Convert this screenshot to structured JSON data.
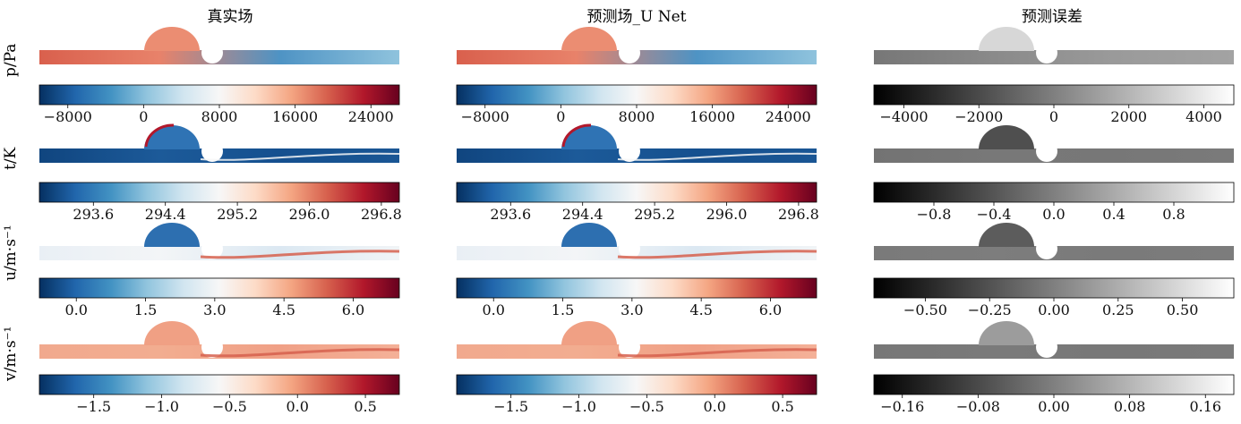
{
  "column_titles": [
    "真实场",
    "预测场_U Net",
    "预测误差"
  ],
  "row_labels": [
    "p/Pa",
    "t/K",
    "u/m·s⁻¹",
    "v/m·s⁻¹"
  ],
  "colors": {
    "diverging": [
      "#053061",
      "#2166ac",
      "#4393c3",
      "#92c5de",
      "#d1e5f0",
      "#f7f7f7",
      "#fddbc7",
      "#f4a582",
      "#d6604d",
      "#b2182b",
      "#67001f"
    ],
    "gray": [
      "#000000",
      "#ffffff"
    ]
  },
  "chart_data": [
    {
      "type": "heatmap",
      "panel": "p-true",
      "colormap": "RdBu_r",
      "vmin": -11000,
      "vmax": 27000,
      "ticks": [
        "−8000",
        "0",
        "8000",
        "16000",
        "24000"
      ],
      "tick_values": [
        -8000,
        0,
        8000,
        16000,
        24000
      ]
    },
    {
      "type": "heatmap",
      "panel": "p-pred",
      "colormap": "RdBu_r",
      "vmin": -11000,
      "vmax": 27000,
      "ticks": [
        "−8000",
        "0",
        "8000",
        "16000",
        "24000"
      ],
      "tick_values": [
        -8000,
        0,
        8000,
        16000,
        24000
      ]
    },
    {
      "type": "heatmap",
      "panel": "p-err",
      "colormap": "gray",
      "vmin": -4800,
      "vmax": 4800,
      "ticks": [
        "−4000",
        "−2000",
        "0",
        "2000",
        "4000"
      ],
      "tick_values": [
        -4000,
        -2000,
        0,
        2000,
        4000
      ]
    },
    {
      "type": "heatmap",
      "panel": "t-true",
      "colormap": "RdBu_r",
      "vmin": 293.0,
      "vmax": 297.0,
      "ticks": [
        "293.6",
        "294.4",
        "295.2",
        "296.0",
        "296.8"
      ],
      "tick_values": [
        293.6,
        294.4,
        295.2,
        296.0,
        296.8
      ]
    },
    {
      "type": "heatmap",
      "panel": "t-pred",
      "colormap": "RdBu_r",
      "vmin": 293.0,
      "vmax": 297.0,
      "ticks": [
        "293.6",
        "294.4",
        "295.2",
        "296.0",
        "296.8"
      ],
      "tick_values": [
        293.6,
        294.4,
        295.2,
        296.0,
        296.8
      ]
    },
    {
      "type": "heatmap",
      "panel": "t-err",
      "colormap": "gray",
      "vmin": -1.2,
      "vmax": 1.2,
      "ticks": [
        "−0.8",
        "−0.4",
        "0.0",
        "0.4",
        "0.8"
      ],
      "tick_values": [
        -0.8,
        -0.4,
        0.0,
        0.4,
        0.8
      ]
    },
    {
      "type": "heatmap",
      "panel": "u-true",
      "colormap": "RdBu_r",
      "vmin": -0.8,
      "vmax": 7.0,
      "ticks": [
        "0.0",
        "1.5",
        "3.0",
        "4.5",
        "6.0"
      ],
      "tick_values": [
        0.0,
        1.5,
        3.0,
        4.5,
        6.0
      ]
    },
    {
      "type": "heatmap",
      "panel": "u-pred",
      "colormap": "RdBu_r",
      "vmin": -0.8,
      "vmax": 7.0,
      "ticks": [
        "0.0",
        "1.5",
        "3.0",
        "4.5",
        "6.0"
      ],
      "tick_values": [
        0.0,
        1.5,
        3.0,
        4.5,
        6.0
      ]
    },
    {
      "type": "heatmap",
      "panel": "u-err",
      "colormap": "gray",
      "vmin": -0.7,
      "vmax": 0.7,
      "ticks": [
        "−0.50",
        "−0.25",
        "0.00",
        "0.25",
        "0.50"
      ],
      "tick_values": [
        -0.5,
        -0.25,
        0.0,
        0.25,
        0.5
      ]
    },
    {
      "type": "heatmap",
      "panel": "v-true",
      "colormap": "RdBu_r",
      "vmin": -1.9,
      "vmax": 0.75,
      "ticks": [
        "−1.5",
        "−1.0",
        "−0.5",
        "0.0",
        "0.5"
      ],
      "tick_values": [
        -1.5,
        -1.0,
        -0.5,
        0.0,
        0.5
      ]
    },
    {
      "type": "heatmap",
      "panel": "v-pred",
      "colormap": "RdBu_r",
      "vmin": -1.9,
      "vmax": 0.75,
      "ticks": [
        "−1.5",
        "−1.0",
        "−0.5",
        "0.0",
        "0.5"
      ],
      "tick_values": [
        -1.5,
        -1.0,
        -0.5,
        0.0,
        0.5
      ]
    },
    {
      "type": "heatmap",
      "panel": "v-err",
      "colormap": "gray",
      "vmin": -0.19,
      "vmax": 0.19,
      "ticks": [
        "−0.16",
        "−0.08",
        "0.00",
        "0.08",
        "0.16"
      ],
      "tick_values": [
        -0.16,
        -0.08,
        0.0,
        0.08,
        0.16
      ]
    }
  ]
}
